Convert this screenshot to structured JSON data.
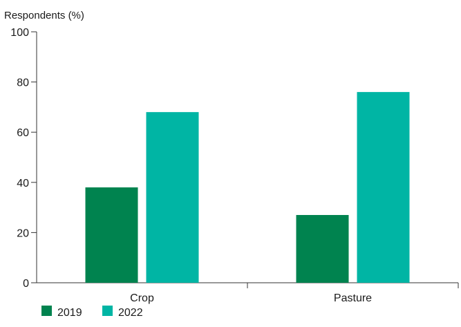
{
  "chart_data": {
    "type": "bar",
    "ylabel": "Respondents (%)",
    "ylim": [
      0,
      100
    ],
    "yticks": [
      "0",
      "20",
      "40",
      "60",
      "80",
      "100"
    ],
    "categories": [
      "Crop",
      "Pasture"
    ],
    "series": [
      {
        "name": "2019",
        "values": [
          38,
          27
        ],
        "color": "#00834f"
      },
      {
        "name": "2022",
        "values": [
          68,
          76
        ],
        "color": "#00b5a4"
      }
    ],
    "grid": false,
    "legend": "bottom-left"
  }
}
